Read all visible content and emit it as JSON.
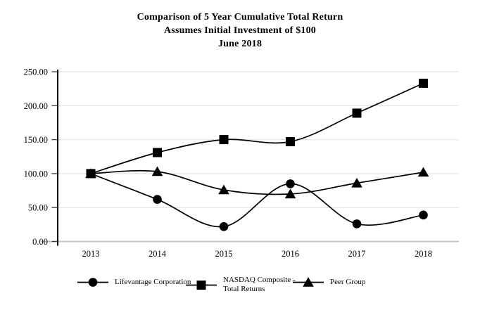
{
  "title": {
    "line1": "Comparison of 5 Year Cumulative Total Return",
    "line2": "Assumes Initial Investment of $100",
    "line3": "June 2018"
  },
  "chart_data": {
    "type": "line",
    "title": "Comparison of 5 Year Cumulative Total Return",
    "subtitle": "Assumes Initial Investment of $100 — June 2018",
    "categories": [
      "2013",
      "2014",
      "2015",
      "2016",
      "2017",
      "2018"
    ],
    "series": [
      {
        "name": "Lifevantage Corporation",
        "marker": "circle",
        "values": [
          100,
          62,
          22,
          85,
          26,
          39
        ]
      },
      {
        "name": "NASDAQ Composite - Total Returns",
        "marker": "square",
        "values": [
          100,
          131,
          150,
          147,
          189,
          233
        ]
      },
      {
        "name": "Peer Group",
        "marker": "triangle",
        "values": [
          100,
          103,
          76,
          70,
          86,
          102
        ]
      }
    ],
    "xlabel": "",
    "ylabel": "",
    "ylim": [
      0,
      250
    ],
    "yticks": [
      0,
      50,
      100,
      150,
      200,
      250
    ],
    "ytick_labels": [
      "0.00",
      "50.00",
      "100.00",
      "150.00",
      "200.00",
      "250.00"
    ],
    "grid": true,
    "legend_position": "bottom",
    "colors": {
      "line": "#000000",
      "marker": "#000000",
      "gridline": "#e8e8e8",
      "x_axis": "#c4c4c4",
      "y_axis": "#000000",
      "text": "#000000",
      "background": "#ffffff"
    }
  },
  "legend": {
    "items": [
      {
        "marker": "circle",
        "lines": [
          "Lifevantage Corporation"
        ]
      },
      {
        "marker": "square",
        "lines": [
          "NASDAQ Composite -",
          "Total Returns"
        ]
      },
      {
        "marker": "triangle",
        "lines": [
          "Peer Group"
        ]
      }
    ]
  }
}
